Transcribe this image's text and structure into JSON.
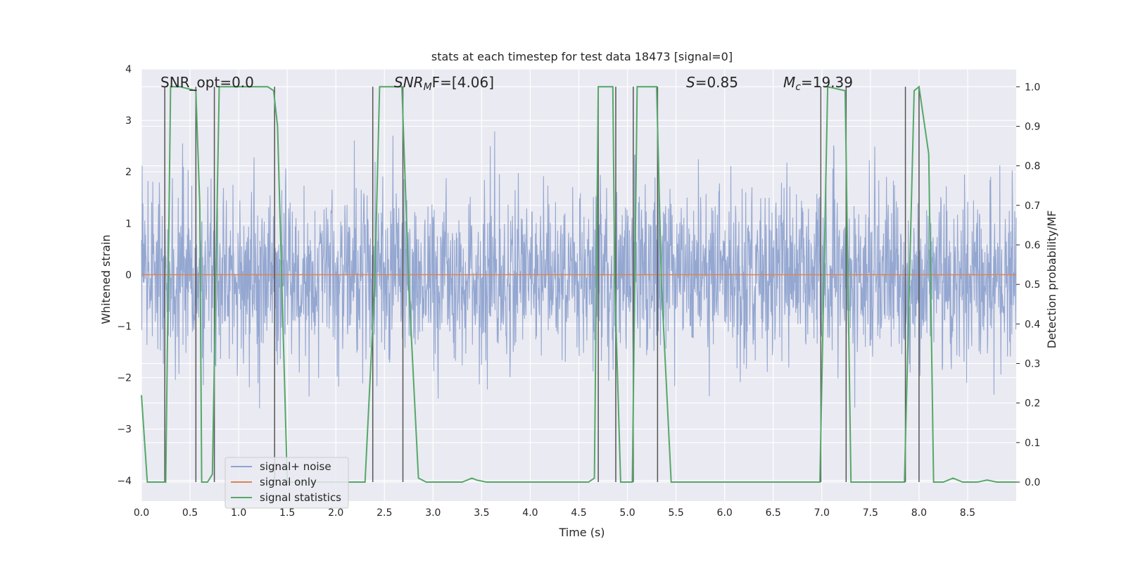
{
  "chart_data": {
    "type": "line",
    "title": "stats at each timestep for test data 18473 [signal=0]",
    "xlabel": "Time (s)",
    "ylabel": "Whitened strain",
    "y2label": "Detection probability/MF",
    "xlim": [
      0.0,
      9.0
    ],
    "ylim": [
      -4.4,
      4.0
    ],
    "y2lim": [
      -0.048,
      1.045
    ],
    "xticks": [
      "0.0",
      "0.5",
      "1.0",
      "1.5",
      "2.0",
      "2.5",
      "3.0",
      "3.5",
      "4.0",
      "4.5",
      "5.0",
      "5.5",
      "6.0",
      "6.5",
      "7.0",
      "7.5",
      "8.0",
      "8.5"
    ],
    "yticks": [
      "−4",
      "−3",
      "−2",
      "−1",
      "0",
      "1",
      "2",
      "3",
      "4"
    ],
    "y2ticks": [
      "0.0",
      "0.1",
      "0.2",
      "0.3",
      "0.4",
      "0.5",
      "0.6",
      "0.7",
      "0.8",
      "0.9",
      "1.0"
    ],
    "grid": true,
    "legend_position": "lower-left",
    "annotations": {
      "snr_opt": "SNR_opt=0.0",
      "snr_mf_main": "SNR",
      "snr_mf_sub": "M",
      "snr_mf_rest": "F=[4.06]",
      "s_main": "S",
      "s_rest": "=0.85",
      "mc_main": "M",
      "mc_sub": "c",
      "mc_rest": "=19.39"
    },
    "colors": {
      "noise": "#8fa3cf",
      "signal_only": "#dd8452",
      "statistics": "#55a868",
      "vlines": "#555555",
      "background": "#eaeaf2",
      "grid": "#ffffff"
    },
    "series": [
      {
        "name": "signal+ noise",
        "description_type": "noise",
        "envelope_sigma": 0.85,
        "y_range_approx": [
          -4.0,
          3.7
        ]
      },
      {
        "name": "signal only",
        "values_constant": 0.0
      },
      {
        "name": "signal statistics",
        "x": [
          0.0,
          0.06,
          0.22,
          0.25,
          0.3,
          0.4,
          0.56,
          0.6,
          0.62,
          0.68,
          0.73,
          0.8,
          0.88,
          1.05,
          1.3,
          1.36,
          1.4,
          1.5,
          1.8,
          2.1,
          2.3,
          2.4,
          2.45,
          2.6,
          2.68,
          2.75,
          2.85,
          2.93,
          3.1,
          3.3,
          3.4,
          3.45,
          3.55,
          3.7,
          4.0,
          4.3,
          4.6,
          4.66,
          4.7,
          4.85,
          4.87,
          4.93,
          5.0,
          5.05,
          5.1,
          5.3,
          5.35,
          5.45,
          5.8,
          6.2,
          6.6,
          6.98,
          7.06,
          7.24,
          7.3,
          7.6,
          7.85,
          7.95,
          8.0,
          8.1,
          8.15,
          8.25,
          8.35,
          8.45,
          8.6,
          8.7,
          8.8,
          9.0
        ],
        "values": [
          0.22,
          0.0,
          0.0,
          0.0,
          1.0,
          1.0,
          0.99,
          0.7,
          0.0,
          0.0,
          0.02,
          1.0,
          1.0,
          1.0,
          1.0,
          0.99,
          0.9,
          0.0,
          0.0,
          0.0,
          0.0,
          0.5,
          1.0,
          1.0,
          1.0,
          0.5,
          0.01,
          0.0,
          0.0,
          0.0,
          0.01,
          0.005,
          0.0,
          0.0,
          0.0,
          0.0,
          0.0,
          0.01,
          1.0,
          1.0,
          0.5,
          0.0,
          0.0,
          0.0,
          1.0,
          1.0,
          0.5,
          0.0,
          0.0,
          0.0,
          0.0,
          0.0,
          1.0,
          0.99,
          0.0,
          0.0,
          0.0,
          0.99,
          1.0,
          0.83,
          0.0,
          0.0,
          0.01,
          0.0,
          0.0,
          0.005,
          0.0,
          0.0
        ]
      }
    ],
    "vertical_lines_x": [
      0.24,
      0.56,
      0.75,
      1.37,
      2.38,
      2.69,
      4.7,
      4.88,
      5.06,
      5.31,
      6.99,
      7.25,
      7.86,
      8.0
    ]
  }
}
